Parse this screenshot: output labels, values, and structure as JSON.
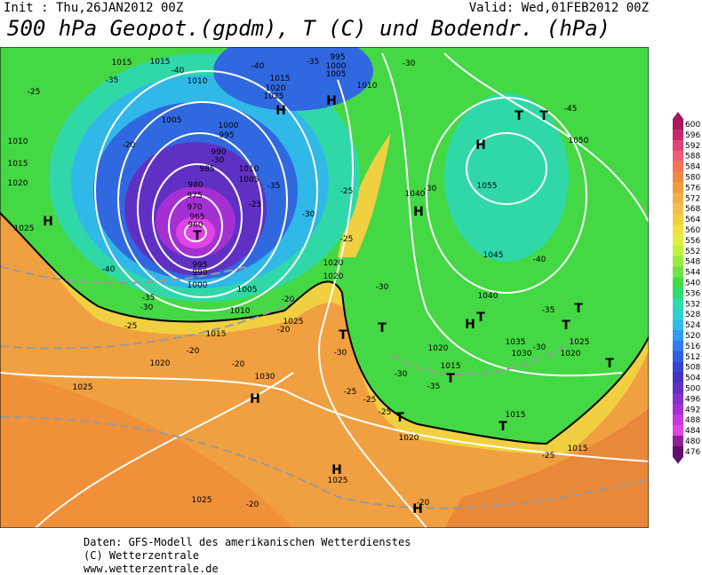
{
  "header": {
    "init": "Init : Thu,26JAN2012 00Z",
    "valid": "Valid: Wed,01FEB2012 00Z",
    "title": "500 hPa Geopot.(gpdm), T (C) und Bodendr. (hPa)"
  },
  "map": {
    "labels": [
      "1015",
      "1015",
      "-40",
      "1010",
      "-40",
      "995",
      "1000",
      "1005",
      "-35",
      "1015",
      "1020",
      "1025",
      "1010",
      "-30",
      "-35",
      "-25",
      "1005",
      "1000",
      "995",
      "990",
      "985",
      "980",
      "975",
      "970",
      "965",
      "960",
      "1010",
      "1005",
      "-30",
      "-35",
      "-25",
      "-30",
      "-25",
      "-25",
      "-20",
      "1010",
      "1015",
      "1020",
      "1025",
      "-40",
      "-35",
      "-30",
      "-25",
      "995",
      "990",
      "1000",
      "1005",
      "1010",
      "1015",
      "1025",
      "-20",
      "-20",
      "-20",
      "-20",
      "1020",
      "1025",
      "1030",
      "1020",
      "1020",
      "-30",
      "-30",
      "-25",
      "-25",
      "-25",
      "-30",
      "-35",
      "1015",
      "1020",
      "1015",
      "1020",
      "-20",
      "1025",
      "1025",
      "-20",
      "1045",
      "1040",
      "1035",
      "1030",
      "1020",
      "1025",
      "-30",
      "-35",
      "-40",
      "1040",
      "-30",
      "1050",
      "1055",
      "-45",
      "1015",
      "-25",
      "T",
      "T",
      "H",
      "H",
      "H",
      "H",
      "T",
      "T",
      "T",
      "H",
      "H",
      "T",
      "T",
      "T",
      "T",
      "T",
      "T",
      "T",
      "H",
      "H",
      "H"
    ]
  },
  "colorbar": {
    "levels": [
      "600",
      "596",
      "592",
      "588",
      "584",
      "580",
      "576",
      "572",
      "568",
      "564",
      "560",
      "556",
      "552",
      "548",
      "544",
      "540",
      "536",
      "532",
      "528",
      "524",
      "520",
      "516",
      "512",
      "508",
      "504",
      "500",
      "496",
      "492",
      "488",
      "484",
      "480",
      "476"
    ],
    "colors": [
      "#a8185a",
      "#c82a6a",
      "#e04478",
      "#f05c78",
      "#f07458",
      "#f08a40",
      "#f09c40",
      "#f0ae48",
      "#f0c050",
      "#f0d040",
      "#f0e040",
      "#e0f040",
      "#c0f040",
      "#98ec40",
      "#70e440",
      "#44dc44",
      "#30dc70",
      "#30dcac",
      "#30d0d0",
      "#30bce8",
      "#309cf0",
      "#307cf0",
      "#3060e0",
      "#3844d0",
      "#4830c0",
      "#6430c4",
      "#8430cc",
      "#a430d4",
      "#c438dc",
      "#e044e4",
      "#902098",
      "#601068"
    ]
  },
  "footer": {
    "lines": [
      "Daten: GFS-Modell des amerikanischen Wetterdienstes",
      "(C) Wetterzentrale",
      "www.wetterzentrale.de"
    ]
  }
}
